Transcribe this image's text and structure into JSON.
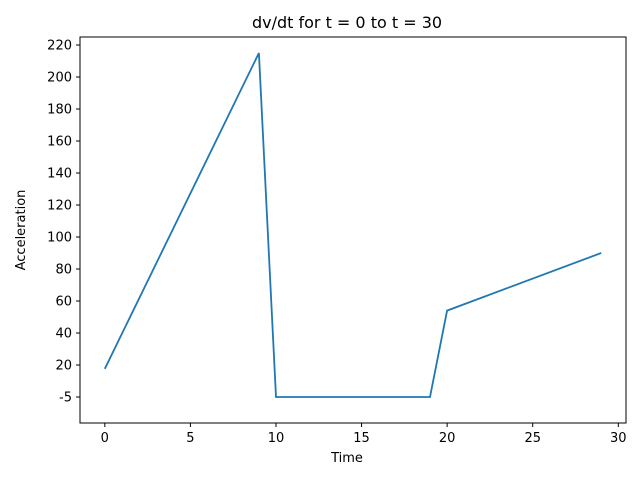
{
  "chart_data": {
    "type": "line",
    "title": "dv/dt for t = 0 to t = 30",
    "xlabel": "Time",
    "ylabel": "Acceleration",
    "x_ticks": [
      0,
      5,
      10,
      15,
      20,
      25,
      30
    ],
    "y_tick_labels": [
      "-5",
      "20",
      "40",
      "60",
      "80",
      "100",
      "120",
      "140",
      "160",
      "180",
      "200",
      "220"
    ],
    "grid": false,
    "series": [
      {
        "color": "#1f77b4",
        "points": [
          {
            "x": 0,
            "y": 17
          },
          {
            "x": 9,
            "y": 215
          },
          {
            "x": 10,
            "y": -5
          },
          {
            "x": 19,
            "y": -5
          },
          {
            "x": 20,
            "y": 54
          },
          {
            "x": 29,
            "y": 90
          }
        ]
      }
    ]
  }
}
